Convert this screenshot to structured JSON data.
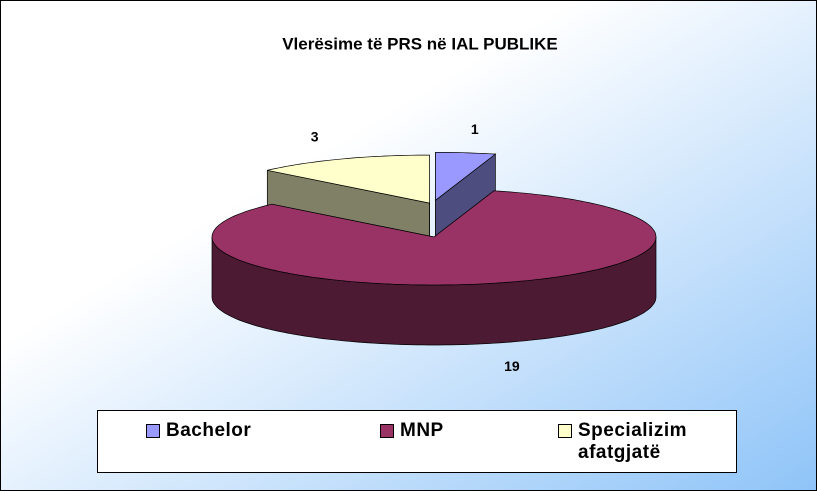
{
  "chart_data": {
    "type": "pie",
    "title": "Vlerësime të PRS në IAL PUBLIKE",
    "categories": [
      "Bachelor",
      "MNP",
      "Specializim afatgjatë"
    ],
    "values": [
      1,
      19,
      3
    ],
    "colors": [
      "#9999ff",
      "#993366",
      "#ffffcc"
    ],
    "legend": "bottom"
  }
}
